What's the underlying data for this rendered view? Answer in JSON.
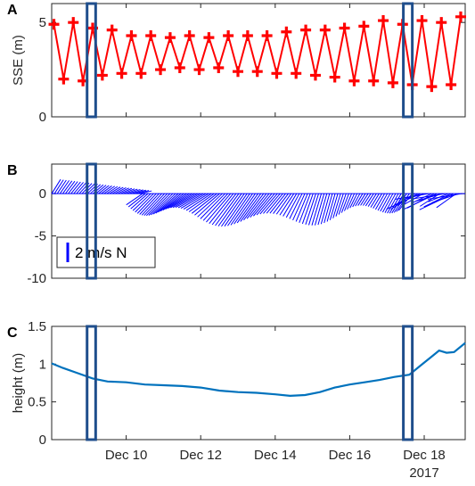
{
  "chart_data": [
    {
      "panel": "A",
      "type": "line",
      "ylabel": "SSE (m)",
      "yticks": [
        0,
        5
      ],
      "ylim": [
        0,
        6
      ],
      "x_range_days": [
        8.0,
        19.1
      ],
      "series": [
        {
          "color": "#ff0000",
          "style": "line-with-plus-markers",
          "x": [
            8.06,
            8.32,
            8.58,
            8.84,
            9.1,
            9.36,
            9.62,
            9.88,
            10.14,
            10.4,
            10.66,
            10.92,
            11.18,
            11.44,
            11.7,
            11.96,
            12.22,
            12.48,
            12.74,
            13.0,
            13.26,
            13.52,
            13.78,
            14.04,
            14.3,
            14.56,
            14.82,
            15.08,
            15.34,
            15.6,
            15.86,
            16.12,
            16.38,
            16.64,
            16.9,
            17.16,
            17.42,
            17.68,
            17.94,
            18.2,
            18.46,
            18.72,
            18.98
          ],
          "y": [
            4.9,
            2.0,
            5.0,
            1.9,
            4.7,
            2.2,
            4.6,
            2.3,
            4.3,
            2.3,
            4.3,
            2.5,
            4.2,
            2.6,
            4.3,
            2.5,
            4.2,
            2.6,
            4.3,
            2.4,
            4.3,
            2.4,
            4.3,
            2.3,
            4.5,
            2.3,
            4.6,
            2.2,
            4.6,
            2.1,
            4.7,
            1.9,
            4.8,
            1.9,
            5.1,
            1.8,
            4.9,
            1.7,
            5.1,
            1.6,
            5.0,
            1.7,
            5.3
          ]
        }
      ],
      "highlight_boxes": [
        {
          "x": [
            8.95,
            9.18
          ]
        },
        {
          "x": [
            17.44,
            17.68
          ]
        }
      ]
    },
    {
      "panel": "B",
      "type": "quiver",
      "yticks": [
        0,
        -5,
        -10
      ],
      "ylim": [
        -10,
        3.5
      ],
      "x_range_days": [
        8.0,
        19.1
      ],
      "arrow_color": "#0000ff",
      "legend_scale": "2 m/s N",
      "highlight_boxes": [
        {
          "x": [
            8.95,
            9.18
          ]
        },
        {
          "x": [
            17.44,
            17.68
          ]
        }
      ]
    },
    {
      "panel": "C",
      "type": "line",
      "ylabel": "height (m)",
      "yticks": [
        0,
        0.5,
        1,
        1.5
      ],
      "ylim": [
        0,
        1.5
      ],
      "x_range_days": [
        8.0,
        19.1
      ],
      "xticks": [
        {
          "day": 10,
          "label": "Dec 10"
        },
        {
          "day": 12,
          "label": "Dec 12"
        },
        {
          "day": 14,
          "label": "Dec 14"
        },
        {
          "day": 16,
          "label": "Dec 16"
        },
        {
          "day": 18,
          "label": "Dec 18"
        }
      ],
      "year_label": "2017",
      "series": [
        {
          "color": "#0072bd",
          "x": [
            8.0,
            8.3,
            8.7,
            9.1,
            9.5,
            10.0,
            10.5,
            11.0,
            11.5,
            12.0,
            12.5,
            13.0,
            13.5,
            14.0,
            14.4,
            14.8,
            15.2,
            15.6,
            16.0,
            16.4,
            16.8,
            17.2,
            17.6,
            17.9,
            18.2,
            18.4,
            18.6,
            18.8,
            19.1
          ],
          "y": [
            1.01,
            0.95,
            0.88,
            0.81,
            0.77,
            0.76,
            0.73,
            0.72,
            0.71,
            0.69,
            0.65,
            0.63,
            0.62,
            0.6,
            0.58,
            0.59,
            0.63,
            0.69,
            0.73,
            0.76,
            0.79,
            0.83,
            0.86,
            0.98,
            1.1,
            1.18,
            1.15,
            1.16,
            1.28
          ]
        }
      ],
      "highlight_boxes": [
        {
          "x": [
            8.95,
            9.18
          ]
        },
        {
          "x": [
            17.44,
            17.68
          ]
        }
      ]
    }
  ]
}
